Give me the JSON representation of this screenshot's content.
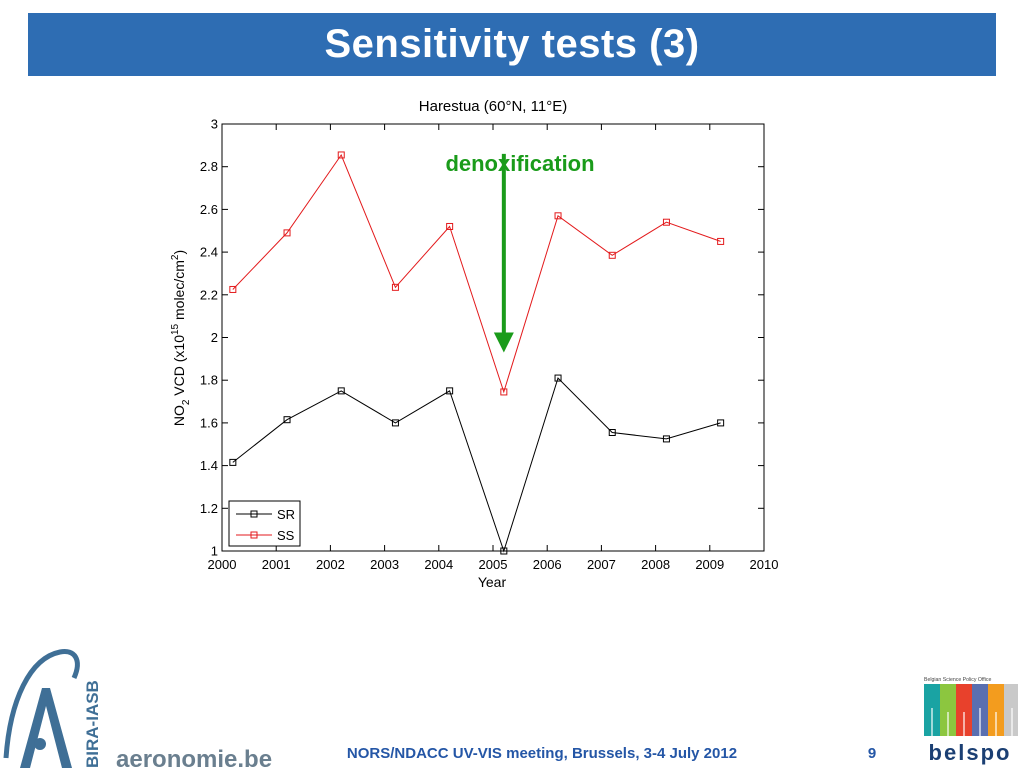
{
  "slide": {
    "title": "Sensitivity tests (3)",
    "footer": "NORS/NDACC UV-VIS meeting, Brussels, 3-4 July 2012",
    "page_number": "9",
    "banner_color": "#2e6db3",
    "footer_color": "#2456a6"
  },
  "logos": {
    "bira_vertical": "BIRA-IASB",
    "bira_site": "aeronomie.be",
    "belspo_name": "belspo",
    "belspo_tagline": "Belgian Science Policy Office"
  },
  "chart_data": {
    "type": "line",
    "title": "Harestua (60°N, 11°E)",
    "xlabel": "Year",
    "ylabel": "NO2 VCD (x10^15 molec/cm^2)",
    "xlim": [
      2000,
      2010
    ],
    "ylim": [
      1,
      3
    ],
    "xticks": [
      "2000",
      "2001",
      "2002",
      "2003",
      "2004",
      "2005",
      "2006",
      "2007",
      "2008",
      "2009",
      "2010"
    ],
    "yticks": [
      "1",
      "1.2",
      "1.4",
      "1.6",
      "1.8",
      "2",
      "2.2",
      "2.4",
      "2.6",
      "2.8",
      "3"
    ],
    "grid": false,
    "legend_position": "bottom-left",
    "series": [
      {
        "name": "SR",
        "color": "#000000",
        "marker": "square",
        "x": [
          2000.2,
          2001.2,
          2002.2,
          2003.2,
          2004.2,
          2005.2,
          2006.2,
          2007.2,
          2008.2,
          2009.2
        ],
        "y": [
          1.415,
          1.615,
          1.75,
          1.6,
          1.75,
          1.0,
          1.81,
          1.555,
          1.525,
          1.6
        ]
      },
      {
        "name": "SS",
        "color": "#e31a1c",
        "marker": "square",
        "x": [
          2000.2,
          2001.2,
          2002.2,
          2003.2,
          2004.2,
          2005.2,
          2006.2,
          2007.2,
          2008.2,
          2009.2
        ],
        "y": [
          2.225,
          2.49,
          2.855,
          2.235,
          2.52,
          1.745,
          2.57,
          2.385,
          2.54,
          2.45
        ]
      }
    ],
    "annotations": [
      {
        "text": "denoxification",
        "color": "#1a9b1a",
        "arrow_x": 2005.2,
        "arrow_from_y": 2.86,
        "arrow_to_y": 1.93
      }
    ]
  }
}
